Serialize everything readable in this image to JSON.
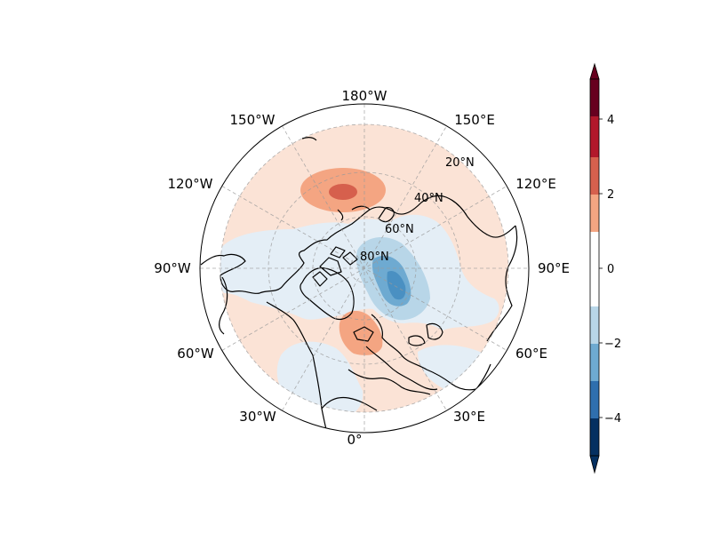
{
  "map": {
    "projection": "north-polar-stereographic",
    "longitude_labels": {
      "top": "180°W",
      "top_left": "150°W",
      "top_right": "150°E",
      "upper_left": "120°W",
      "upper_right": "120°E",
      "left": "90°W",
      "right": "90°E",
      "lower_left": "60°W",
      "lower_right": "60°E",
      "bottom_left": "30°W",
      "bottom_right": "30°E",
      "bottom": "0°"
    },
    "latitude_labels": {
      "lat20": "20°N",
      "lat40": "40°N",
      "lat60": "60°N",
      "lat80": "80°N"
    },
    "gridlines": true,
    "coastlines": true
  },
  "colorbar": {
    "ticks": [
      "4",
      "2",
      "0",
      "−2",
      "−4"
    ],
    "levels": [
      -5,
      -4,
      -3,
      -2,
      -1,
      1,
      2,
      3,
      4,
      5
    ],
    "colors": {
      "pos_5": "#67001f",
      "pos_4": "#b2182b",
      "pos_3": "#d6604d",
      "pos_2": "#f4a582",
      "pos_1": "#fbe3d6",
      "neutral": "#ffffff",
      "neg_1": "#e4eef6",
      "neg_2": "#b8d6e8",
      "neg_3": "#6eaad1",
      "neg_4": "#2f6fae",
      "neg_5": "#053061"
    },
    "extend": "both"
  }
}
